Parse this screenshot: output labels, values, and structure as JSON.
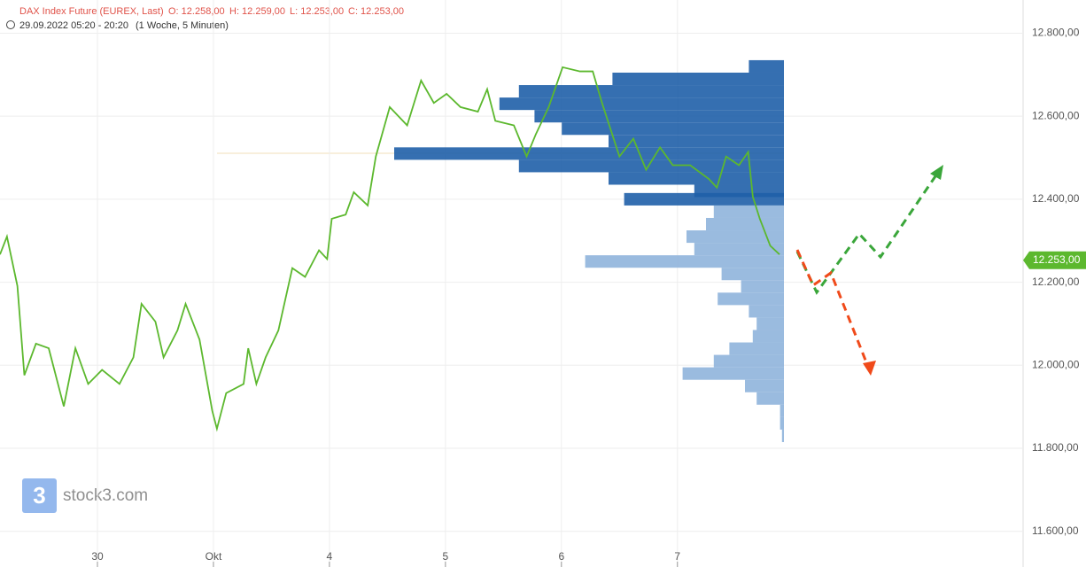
{
  "chart_data": {
    "type": "line",
    "title": "DAX Index Future (EUREX, Last)",
    "ohlc": [
      "O: 12.258,00",
      "H: 12.259,00",
      "L: 12.253,00",
      "C: 12.253,00"
    ],
    "subtitle": "29.09.2022 05:20 - 20:20",
    "period": "(1 Woche, 5 Minuten)",
    "watermark": "stock3.com",
    "logo": "3",
    "grid": true,
    "xlim": [
      0.16,
      8.98
    ],
    "ylim": [
      11514,
      12880
    ],
    "xticks": [
      {
        "value": 1,
        "label": "30"
      },
      {
        "value": 2,
        "label": "Okt"
      },
      {
        "value": 3,
        "label": "4"
      },
      {
        "value": 4,
        "label": "5"
      },
      {
        "value": 5,
        "label": "6"
      },
      {
        "value": 6,
        "label": "7"
      }
    ],
    "yticks": [
      {
        "value": 11600,
        "label": "11.600,00"
      },
      {
        "value": 11800,
        "label": "11.800,00"
      },
      {
        "value": 12000,
        "label": "12.000,00"
      },
      {
        "value": 12200,
        "label": "12.200,00"
      },
      {
        "value": 12400,
        "label": "12.400,00"
      },
      {
        "value": 12600,
        "label": "12.600,00"
      },
      {
        "value": 12800,
        "label": "12.800,00"
      }
    ],
    "last_price": {
      "value": 12253,
      "label": "12.253,00",
      "color": "#5cb82e"
    },
    "series": [
      {
        "color": "#5cb82e",
        "x": [
          0.16,
          0.22,
          0.31,
          0.37,
          0.47,
          0.58,
          0.71,
          0.81,
          0.92,
          1.04,
          1.19,
          1.31,
          1.38,
          1.5,
          1.57,
          1.69,
          1.76,
          1.88,
          1.99,
          2.03,
          2.11,
          2.26,
          2.3,
          2.37,
          2.45,
          2.56,
          2.68,
          2.79,
          2.91,
          2.98,
          3.02,
          3.14,
          3.21,
          3.33,
          3.4,
          3.52,
          3.67,
          3.79,
          3.9,
          4.01,
          4.13,
          4.28,
          4.36,
          4.43,
          4.59,
          4.7,
          4.78,
          4.89,
          5.01,
          5.16,
          5.27,
          5.35,
          5.5,
          5.62,
          5.73,
          5.85,
          5.96,
          6.11,
          6.27,
          6.34,
          6.42,
          6.53,
          6.61,
          6.65,
          6.71,
          6.8,
          6.88
        ],
        "values": [
          12267,
          12310,
          12191,
          11976,
          12052,
          12041,
          11901,
          12041,
          11955,
          11989,
          11955,
          12019,
          12148,
          12105,
          12019,
          12084,
          12148,
          12062,
          11890,
          11847,
          11933,
          11955,
          12041,
          11955,
          12019,
          12084,
          12234,
          12213,
          12277,
          12256,
          12353,
          12363,
          12417,
          12385,
          12503,
          12622,
          12578,
          12686,
          12632,
          12654,
          12622,
          12611,
          12665,
          12589,
          12578,
          12503,
          12557,
          12622,
          12718,
          12708,
          12708,
          12632,
          12503,
          12546,
          12471,
          12525,
          12482,
          12482,
          12449,
          12428,
          12503,
          12482,
          12514,
          12406,
          12353,
          12288,
          12267
        ]
      }
    ],
    "volume_profile": {
      "value_area_color": "#1f5fa8",
      "color": "#8fb4dc",
      "value_area_low": 12400,
      "levels": [
        12720,
        12690,
        12660,
        12630,
        12600,
        12570,
        12540,
        12510,
        12480,
        12450,
        12420,
        12400,
        12370,
        12340,
        12310,
        12280,
        12250,
        12220,
        12190,
        12160,
        12130,
        12100,
        12070,
        12040,
        12010,
        11980,
        11950,
        11920,
        11890,
        11860,
        11830
      ],
      "values": [
        9,
        44,
        68,
        73,
        64,
        57,
        45,
        100,
        68,
        45,
        23,
        41,
        18,
        20,
        25,
        23,
        51,
        16,
        11,
        17,
        9,
        7,
        8,
        14,
        18,
        26,
        10,
        7,
        1,
        1,
        0.5
      ]
    }
  }
}
